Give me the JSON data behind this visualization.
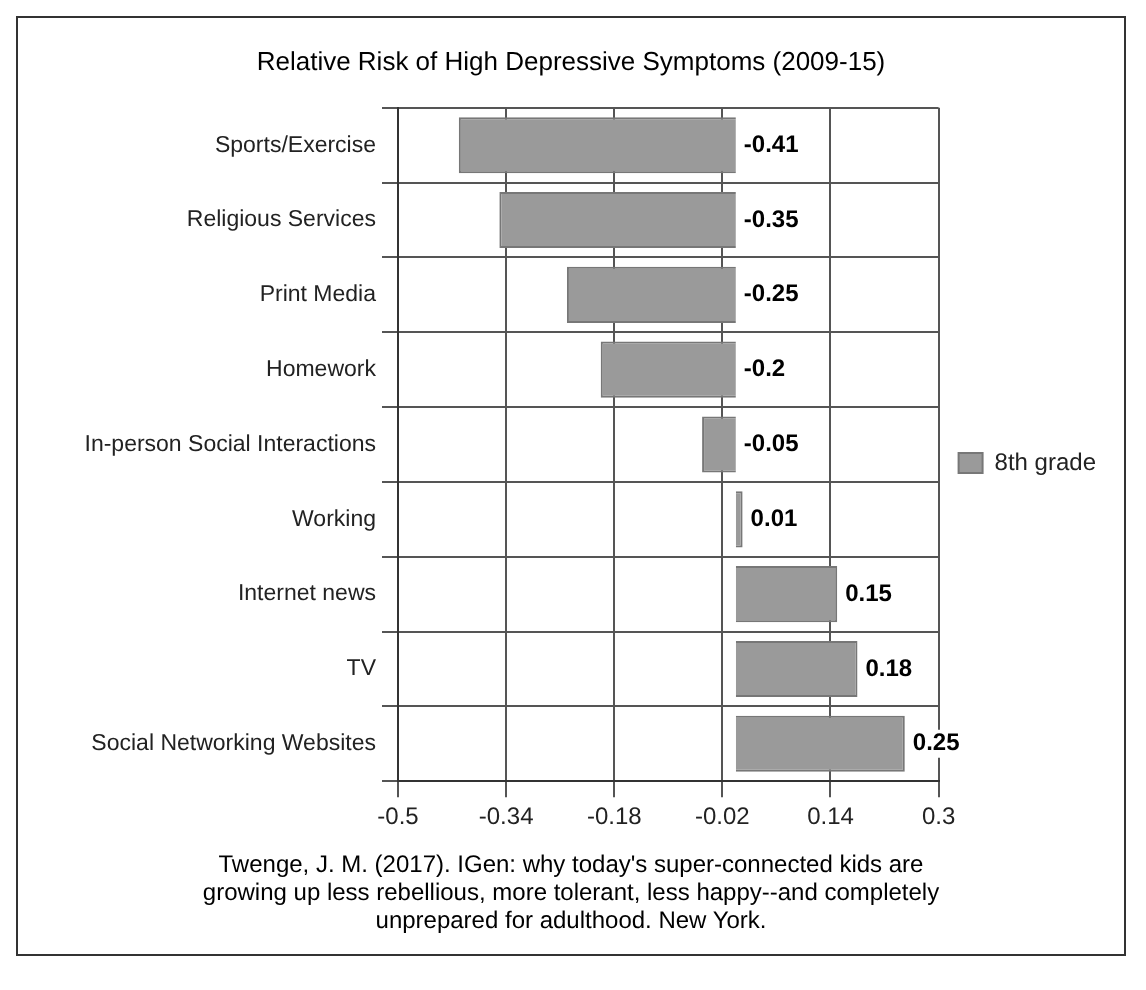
{
  "chart_data": {
    "type": "bar",
    "orientation": "horizontal",
    "title": "Relative Risk of High Depressive Symptoms (2009-15)",
    "categories": [
      "Sports/Exercise",
      "Religious Services",
      "Print Media",
      "Homework",
      "In-person Social Interactions",
      "Working",
      "Internet news",
      "TV",
      "Social Networking Websites"
    ],
    "series": [
      {
        "name": "8th grade",
        "color": "#9a9a9a",
        "values": [
          -0.41,
          -0.35,
          -0.25,
          -0.2,
          -0.05,
          0.01,
          0.15,
          0.18,
          0.25
        ]
      }
    ],
    "xlim": [
      -0.5,
      0.3
    ],
    "xticks": [
      -0.5,
      -0.34,
      -0.18,
      -0.02,
      0.14,
      0.3
    ],
    "data_labels": true,
    "grid": true,
    "legend": "right",
    "annotations": [
      "Twenge, J. M. (2017). IGen: why today's super-connected kids are growing up less rebellious, more tolerant, less happy--and completely unprepared for adulthood. New York."
    ]
  }
}
